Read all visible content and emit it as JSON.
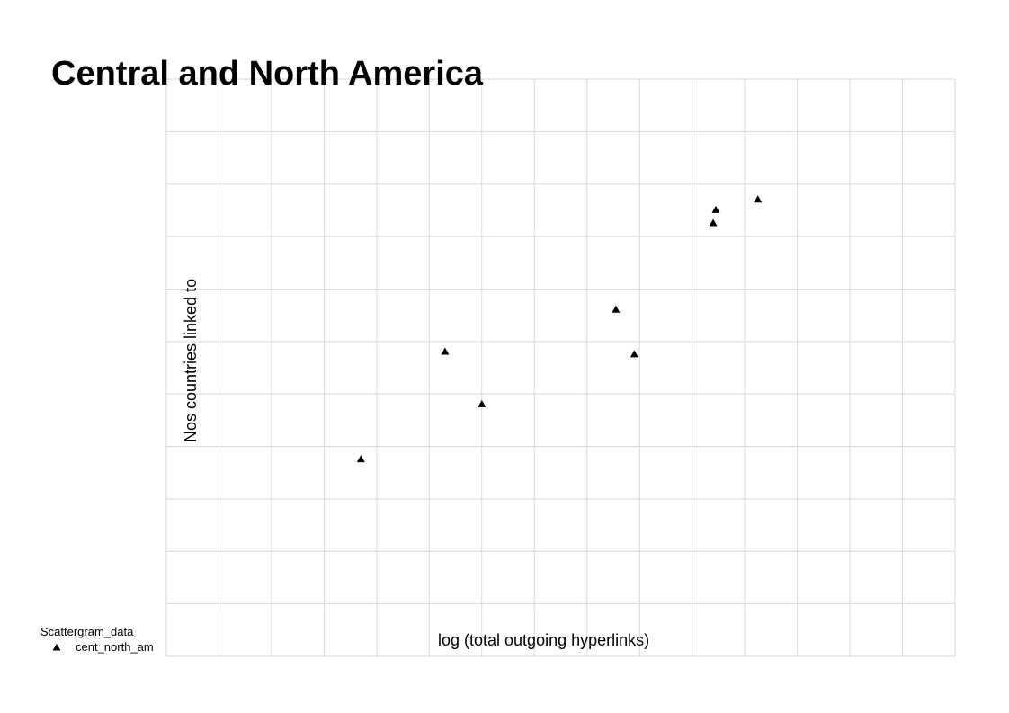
{
  "chart_data": {
    "type": "scatter",
    "title": "Central and North America",
    "xlabel": "log (total outgoing hyperlinks)",
    "ylabel": "Nos countries linked to",
    "xlim": [
      0,
      15
    ],
    "ylim": [
      0,
      11
    ],
    "grid": true,
    "legend": {
      "title": "Scattergram_data",
      "position": "bottom-left"
    },
    "series": [
      {
        "name": "cent_north_am",
        "marker": "triangle",
        "color": "#000000",
        "points": [
          {
            "x": 3.7,
            "y": 3.75
          },
          {
            "x": 5.3,
            "y": 5.8
          },
          {
            "x": 6.0,
            "y": 4.8
          },
          {
            "x": 8.55,
            "y": 6.6
          },
          {
            "x": 8.9,
            "y": 5.75
          },
          {
            "x": 10.4,
            "y": 8.25
          },
          {
            "x": 10.45,
            "y": 8.5
          },
          {
            "x": 11.25,
            "y": 8.7
          }
        ]
      }
    ]
  }
}
